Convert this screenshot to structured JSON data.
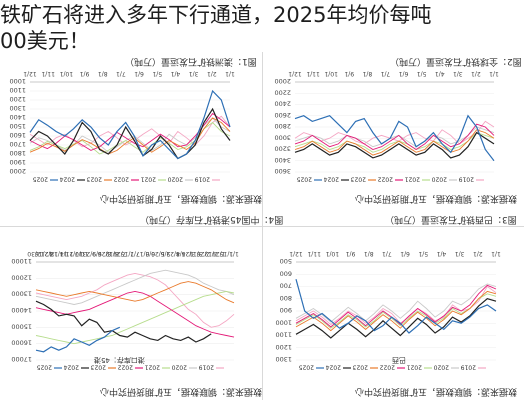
{
  "headline": {
    "line1": "铁矿石将进入多年下行通道，2025年均价每吨",
    "line2": "00美元！"
  },
  "source_text": "数据来源：钢联数据，五矿期货研究中心",
  "colors": {
    "s2019": "#f4a6c3",
    "s2020": "#c9c9c9",
    "s2021": "#b7dd8d",
    "s2022": "#e41a78",
    "s2023": "#e97a2b",
    "s2024": "#222222",
    "s2025": "#2d6fb5",
    "accent_red": "#c0392b"
  },
  "panels": {
    "tl": {
      "title": "图1：澳洲铁矿石发运量（万吨）"
    },
    "tr": {
      "title": "图2：全球铁矿石发运量（万吨）"
    },
    "bl": {
      "title": "图4：中国45港铁矿石库存（万吨）"
    },
    "br": {
      "title": "图3：巴西铁矿石发运量（万吨）"
    }
  },
  "chart_data": [
    {
      "type": "line",
      "title": "",
      "ylim": [
        1000,
        2000
      ],
      "y_ticks": [
        "1000",
        "1100",
        "1200",
        "1300",
        "1400",
        "1500",
        "1600",
        "1700",
        "1800",
        "1900",
        "2000"
      ],
      "x_ticks": [
        "1/1",
        "2/1",
        "3/1",
        "4/1",
        "5/1",
        "6/1",
        "7/1",
        "8/1",
        "9/1",
        "10/1",
        "11/1",
        "12/1"
      ],
      "legend_position": "top",
      "series": [
        {
          "name": "2019",
          "color_key": "s2019",
          "values": [
            1500,
            1380,
            1450,
            1600,
            1700,
            1620,
            1550,
            1680,
            1600,
            1520,
            1580,
            1650,
            1700,
            1620,
            1550,
            1600,
            1680,
            1720,
            1650,
            1580,
            1620,
            1700,
            1640,
            1580
          ]
        },
        {
          "name": "2020",
          "color_key": "s2020",
          "values": [
            1550,
            1500,
            1400,
            1480,
            1620,
            1700,
            1650,
            1580,
            1700,
            1760,
            1680,
            1600,
            1650,
            1720,
            1780,
            1700,
            1650,
            1600,
            1700,
            1760,
            1700,
            1650,
            1620,
            1680
          ]
        },
        {
          "name": "2021",
          "color_key": "s2021",
          "values": [
            1600,
            1550,
            1450,
            1520,
            1650,
            1720,
            1750,
            1680,
            1620,
            1700,
            1780,
            1720,
            1650,
            1700,
            1760,
            1800,
            1720,
            1650,
            1690,
            1740,
            1700,
            1660,
            1720,
            1760
          ]
        },
        {
          "name": "2022",
          "color_key": "s2022",
          "values": [
            1500,
            1420,
            1350,
            1480,
            1600,
            1700,
            1720,
            1640,
            1580,
            1650,
            1720,
            1680,
            1620,
            1560,
            1640,
            1720,
            1760,
            1700,
            1640,
            1600,
            1680,
            1740,
            1700,
            1650
          ]
        },
        {
          "name": "2023",
          "color_key": "s2023",
          "values": [
            1550,
            1450,
            1400,
            1520,
            1680,
            1750,
            1700,
            1650,
            1720,
            1780,
            1700,
            1620,
            1680,
            1760,
            1800,
            1740,
            1680,
            1640,
            1700,
            1770,
            1720,
            1680,
            1740,
            1780
          ]
        },
        {
          "name": "2024",
          "color_key": "s2024",
          "values": [
            1650,
            1520,
            1300,
            1450,
            1700,
            1800,
            1850,
            1700,
            1600,
            1750,
            1820,
            1650,
            1500,
            1700,
            1800,
            1750,
            1550,
            1450,
            1650,
            1800,
            1700,
            1600,
            1550,
            1650
          ]
        },
        {
          "name": "2025",
          "color_key": "s2025",
          "values": [
            1500,
            1200,
            1100,
            1400,
            1650,
            1800,
            1850,
            1750,
            1650,
            1700,
            1820,
            1600,
            1450,
            1550,
            1700,
            1620,
            1500,
            1420,
            1520,
            1600,
            1550,
            1480,
            1420,
            1560
          ]
        }
      ]
    },
    {
      "type": "line",
      "title": "",
      "ylim": [
        2000,
        3600
      ],
      "y_ticks": [
        "2000",
        "2200",
        "2400",
        "2600",
        "2800",
        "3000",
        "3200",
        "3400",
        "3600"
      ],
      "x_ticks": [
        "1/1",
        "2/1",
        "3/1",
        "4/1",
        "5/1",
        "6/1",
        "7/1",
        "8/1",
        "9/1",
        "10/1",
        "11/1",
        "12/1"
      ],
      "legend_position": "top",
      "series": [
        {
          "name": "2019",
          "color_key": "s2019",
          "values": [
            2800,
            2700,
            2900,
            3000,
            3100,
            2950,
            2850,
            3050,
            3000,
            2900,
            2950,
            3050,
            3000,
            2950,
            3000,
            3100,
            3050,
            2950,
            2900,
            3000,
            3050,
            2950,
            2900,
            3000
          ]
        },
        {
          "name": "2020",
          "color_key": "s2020",
          "values": [
            2900,
            2850,
            2800,
            2950,
            3050,
            3100,
            3000,
            2950,
            3050,
            3150,
            3050,
            2950,
            3000,
            3100,
            3150,
            3050,
            3000,
            2950,
            3050,
            3100,
            3000,
            2950,
            3000,
            3050
          ]
        },
        {
          "name": "2021",
          "color_key": "s2021",
          "values": [
            3000,
            2950,
            2900,
            3050,
            3150,
            3200,
            3100,
            3050,
            3150,
            3200,
            3100,
            3050,
            3100,
            3200,
            3250,
            3150,
            3100,
            3050,
            3150,
            3200,
            3100,
            3050,
            3100,
            3150
          ]
        },
        {
          "name": "2022",
          "color_key": "s2022",
          "values": [
            2950,
            2800,
            2750,
            2950,
            3100,
            3150,
            3050,
            2950,
            3100,
            3200,
            3100,
            2950,
            3050,
            3150,
            3200,
            3100,
            3000,
            2950,
            3100,
            3150,
            3050,
            2950,
            3050,
            3100
          ]
        },
        {
          "name": "2023",
          "color_key": "s2023",
          "values": [
            3000,
            2900,
            2850,
            3050,
            3200,
            3250,
            3150,
            3050,
            3200,
            3250,
            3150,
            3050,
            3150,
            3250,
            3300,
            3200,
            3100,
            3050,
            3200,
            3250,
            3150,
            3050,
            3150,
            3200
          ]
        },
        {
          "name": "2024",
          "color_key": "s2024",
          "values": [
            3100,
            3000,
            2900,
            3150,
            3300,
            3350,
            3200,
            3100,
            3250,
            3300,
            3200,
            3100,
            3200,
            3300,
            3350,
            3250,
            3150,
            3100,
            3250,
            3300,
            3200,
            3100,
            3200,
            3250
          ]
        },
        {
          "name": "2025",
          "color_key": "s2025",
          "values": [
            3400,
            3200,
            2800,
            2600,
            3000,
            3250,
            3100,
            2900,
            3050,
            3150,
            2800,
            2700,
            3000,
            3100,
            2900,
            2650,
            2700,
            2900,
            2750,
            2600,
            2650,
            2700,
            2600,
            2650
          ]
        }
      ]
    },
    {
      "type": "line",
      "title": "",
      "ylim": [
        11000,
        17000
      ],
      "y_ticks": [
        "11000",
        "12000",
        "13000",
        "14000",
        "15000",
        "16000",
        "17000"
      ],
      "x_ticks": [
        "1/1",
        "1/15",
        "1/29",
        "2/12",
        "2/26",
        "3/11",
        "3/25",
        "4/8",
        "4/22",
        "5/6",
        "5/20",
        "6/3",
        "6/17",
        "7/1",
        "7/15",
        "7/29",
        "8/12",
        "8/26",
        "9/9",
        "9/23",
        "10/7",
        "10/21",
        "11/4",
        "11/18",
        "12/2",
        "12/16",
        "12/30"
      ],
      "legend_position": "top",
      "annotation": "港口库存：45港",
      "series": [
        {
          "name": "2019",
          "color_key": "s2019",
          "values": [
            14200,
            14600,
            14900,
            15000,
            14700,
            14200,
            13900,
            13400,
            12900,
            12400,
            12100,
            11900,
            11800,
            11700,
            11800,
            12000,
            12200,
            12400,
            12700,
            12900,
            13100,
            13200,
            13300,
            13200,
            13100,
            13000,
            12900
          ]
        },
        {
          "name": "2020",
          "color_key": "s2020",
          "values": [
            13000,
            12800,
            12700,
            12500,
            12300,
            12000,
            11800,
            11700,
            11600,
            11500,
            11600,
            11700,
            11900,
            12100,
            12300,
            12500,
            12700,
            12900,
            13100,
            13300,
            13500,
            13600,
            13500,
            13400,
            13300,
            13200,
            13100
          ]
        },
        {
          "name": "2021",
          "color_key": "s2021",
          "values": [
            12900,
            12800,
            12900,
            13000,
            13100,
            13300,
            13500,
            13700,
            13900,
            14100,
            14300,
            14500,
            14700,
            14900,
            15100,
            15300,
            15500,
            15600,
            15700,
            15800,
            15900,
            16000,
            15900,
            15800,
            15700,
            15600,
            15500
          ]
        },
        {
          "name": "2022",
          "color_key": "s2022",
          "values": [
            15600,
            15500,
            15400,
            15300,
            15100,
            14900,
            14600,
            14300,
            14000,
            13700,
            13400,
            13100,
            12900,
            12800,
            12900,
            13100,
            13300,
            13500,
            13700,
            13900,
            14000,
            14100,
            14200,
            14100,
            14000,
            13900,
            13800
          ]
        },
        {
          "name": "2023",
          "color_key": "s2023",
          "values": [
            13500,
            13300,
            13000,
            12700,
            12500,
            12300,
            12200,
            12300,
            12500,
            12700,
            12900,
            13100,
            13300,
            13400,
            13300,
            13200,
            13100,
            13000,
            12900,
            12800,
            12900,
            13000,
            13100,
            13000,
            12900,
            12800,
            12700
          ]
        },
        {
          "name": "2024",
          "color_key": "s2024",
          "values": [
            null,
            null,
            null,
            15400,
            15700,
            15900,
            15600,
            15800,
            15700,
            15500,
            15800,
            15700,
            15500,
            15300,
            15600,
            15500,
            15200,
            15300,
            14700,
            14500,
            14900,
            14300,
            14200,
            14300,
            13900,
            13600,
            13400
          ]
        },
        {
          "name": "2025",
          "color_key": "s2025",
          "values": [
            null,
            null,
            null,
            null,
            null,
            null,
            null,
            null,
            null,
            null,
            null,
            null,
            null,
            null,
            null,
            15000,
            15200,
            15600,
            15800,
            16100,
            15900,
            15700,
            16200,
            16400,
            16200,
            16500,
            16400
          ]
        }
      ]
    },
    {
      "type": "line",
      "title": "",
      "ylim": [
        500,
        1300
      ],
      "y_ticks": [
        "500",
        "600",
        "700",
        "800",
        "900",
        "1000",
        "1100",
        "1200",
        "1300"
      ],
      "x_ticks": [
        "1/1",
        "2/1",
        "3/1",
        "4/1",
        "5/1",
        "6/1",
        "7/1",
        "8/1",
        "9/1",
        "10/1",
        "11/1",
        "12/1"
      ],
      "legend_position": "top",
      "annotation": "巴西",
      "series": [
        {
          "name": "2019",
          "color_key": "s2019",
          "values": [
            750,
            700,
            820,
            880,
            900,
            850,
            950,
            980,
            920,
            880,
            950,
            1000,
            920,
            880,
            950,
            1000,
            940,
            900,
            960,
            1010,
            950,
            900,
            940,
            980
          ]
        },
        {
          "name": "2020",
          "color_key": "s2020",
          "values": [
            700,
            680,
            720,
            800,
            850,
            820,
            900,
            950,
            880,
            820,
            900,
            960,
            900,
            850,
            920,
            980,
            920,
            870,
            930,
            990,
            930,
            880,
            920,
            960
          ]
        },
        {
          "name": "2021",
          "color_key": "s2021",
          "values": [
            780,
            760,
            800,
            880,
            920,
            880,
            960,
            1000,
            940,
            900,
            960,
            1020,
            960,
            910,
            980,
            1030,
            970,
            930,
            990,
            1040,
            980,
            930,
            970,
            1010
          ]
        },
        {
          "name": "2022",
          "color_key": "s2022",
          "values": [
            720,
            690,
            760,
            850,
            900,
            870,
            940,
            990,
            930,
            880,
            940,
            1010,
            950,
            900,
            960,
            1020,
            960,
            910,
            970,
            1030,
            970,
            920,
            960,
            1000
          ]
        },
        {
          "name": "2023",
          "color_key": "s2023",
          "values": [
            760,
            740,
            800,
            880,
            930,
            900,
            970,
            1020,
            960,
            910,
            970,
            1040,
            980,
            930,
            990,
            1050,
            990,
            940,
            1000,
            1060,
            1000,
            950,
            990,
            1030
          ]
        },
        {
          "name": "2024",
          "color_key": "s2024",
          "values": [
            820,
            800,
            860,
            940,
            990,
            950,
            1030,
            1080,
            1010,
            960,
            1030,
            1100,
            1040,
            980,
            1050,
            1110,
            1050,
            1000,
            1060,
            1120,
            1060,
            1010,
            1050,
            1090
          ]
        },
        {
          "name": "2025",
          "color_key": "s2025",
          "values": [
            900,
            850,
            880,
            950,
            1000,
            980,
            1050,
            1000,
            950,
            1020,
            1080,
            1000,
            950,
            1020,
            1060,
            980,
            940,
            1000,
            1040,
            980,
            920,
            960,
            900,
            640
          ]
        }
      ]
    }
  ]
}
